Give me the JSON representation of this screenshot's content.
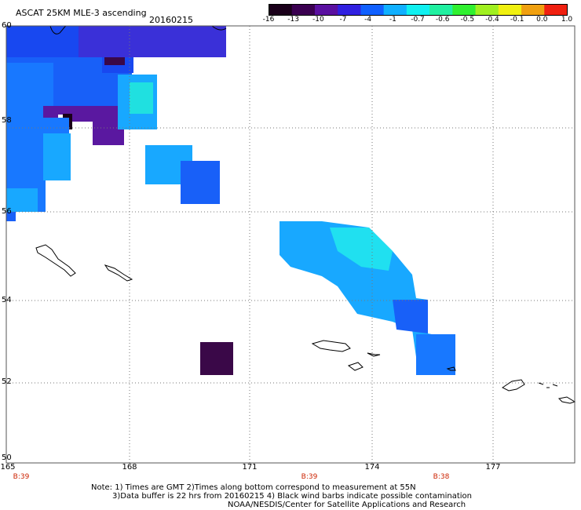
{
  "title": "ASCAT 25KM MLE-3 ascending",
  "date": "20160215",
  "colorbar": {
    "labels": [
      "-16",
      "-13",
      "-10",
      "-7",
      "-4",
      "-1",
      "-0.7",
      "-0.6",
      "-0.5",
      "-0.4",
      "-0.1",
      "0.0",
      "1.0"
    ],
    "colors": [
      "#1a001a",
      "#3a0050",
      "#5a10a0",
      "#3020e0",
      "#1060ff",
      "#10b0ff",
      "#10f0f0",
      "#20f0a0",
      "#30f030",
      "#a0f020",
      "#f0f010",
      "#f0a010",
      "#f02010"
    ]
  },
  "x_ticks": [
    "165",
    "168",
    "171",
    "174",
    "177"
  ],
  "y_ticks": [
    "60",
    "58",
    "56",
    "54",
    "52",
    "50"
  ],
  "pass_times": [
    "B:39",
    "B:39",
    "B:38"
  ],
  "notes": [
    "Note: 1) Times are GMT 2)Times along bottom correspond to measurement at 55N",
    "3)Data buffer is 22 hrs from 20160215 4) Black wind barbs indicate possible contamination",
    "NOAA/NESDIS/Center for Satellite Applications and Research"
  ],
  "legend_colors": {
    "dark": "#3a0848",
    "purple": "#5a18a0",
    "blue": "#1848f0",
    "mid_blue": "#1878ff",
    "light_blue": "#18a8ff",
    "cyan": "#20e0f0"
  }
}
